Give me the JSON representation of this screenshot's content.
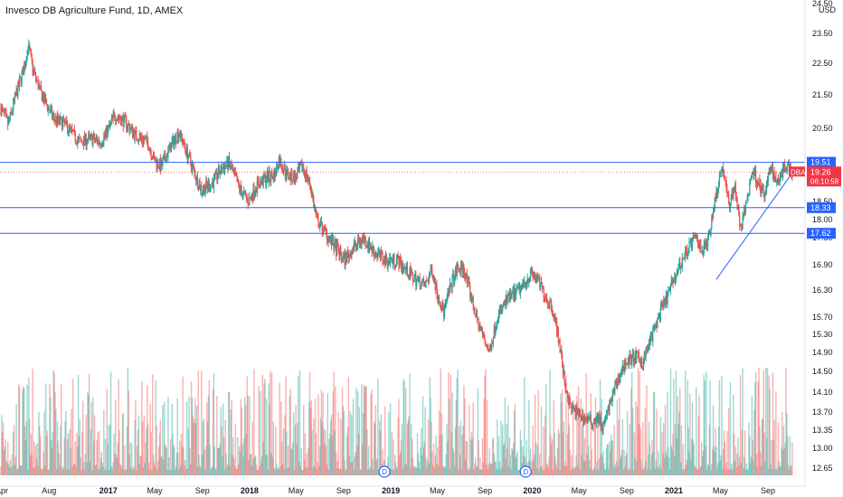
{
  "header": {
    "title": "Invesco DB Agriculture Fund, 1D, AMEX",
    "currency": "USD"
  },
  "colors": {
    "up": "#26a69a",
    "down": "#ef5350",
    "hline": "#2962ff",
    "price": "#f23645",
    "trend": "#2962ff"
  },
  "chart_data": {
    "type": "candlestick",
    "title": "Invesco DB Agriculture Fund, 1D, AMEX",
    "y_axis": {
      "ticks": [
        "24.50",
        "23.50",
        "22.50",
        "21.50",
        "20.50",
        "19.50",
        "18.50",
        "18.00",
        "17.50",
        "16.90",
        "16.30",
        "15.70",
        "15.30",
        "14.90",
        "14.50",
        "14.10",
        "13.70",
        "13.35",
        "13.00",
        "12.65"
      ],
      "scale": "log",
      "range": [
        12.5,
        24.6
      ],
      "currency": "USD"
    },
    "x_axis": {
      "ticks": [
        {
          "label": "Apr",
          "date": "2016-04-01",
          "bold": false
        },
        {
          "label": "Aug",
          "date": "2016-08-01",
          "bold": false
        },
        {
          "label": "2017",
          "date": "2017-01-01",
          "bold": true
        },
        {
          "label": "May",
          "date": "2017-05-01",
          "bold": false
        },
        {
          "label": "Sep",
          "date": "2017-09-01",
          "bold": false
        },
        {
          "label": "2018",
          "date": "2018-01-01",
          "bold": true
        },
        {
          "label": "May",
          "date": "2018-05-01",
          "bold": false
        },
        {
          "label": "Sep",
          "date": "2018-09-01",
          "bold": false
        },
        {
          "label": "2019",
          "date": "2019-01-01",
          "bold": true
        },
        {
          "label": "May",
          "date": "2019-05-01",
          "bold": false
        },
        {
          "label": "Sep",
          "date": "2019-09-01",
          "bold": false
        },
        {
          "label": "2020",
          "date": "2020-01-01",
          "bold": true
        },
        {
          "label": "May",
          "date": "2020-05-01",
          "bold": false
        },
        {
          "label": "Sep",
          "date": "2020-09-01",
          "bold": false
        },
        {
          "label": "2021",
          "date": "2021-01-01",
          "bold": true
        },
        {
          "label": "May",
          "date": "2021-05-01",
          "bold": false
        },
        {
          "label": "Sep",
          "date": "2021-09-01",
          "bold": false
        }
      ],
      "range": [
        "2016-04-01",
        "2021-12-01"
      ]
    },
    "price_path": [
      {
        "date": "2016-04-01",
        "price": 21.1
      },
      {
        "date": "2016-04-20",
        "price": 20.6
      },
      {
        "date": "2016-05-10",
        "price": 21.5
      },
      {
        "date": "2016-06-01",
        "price": 22.4
      },
      {
        "date": "2016-06-10",
        "price": 23.1
      },
      {
        "date": "2016-06-25",
        "price": 22.2
      },
      {
        "date": "2016-07-15",
        "price": 21.5
      },
      {
        "date": "2016-08-15",
        "price": 20.8
      },
      {
        "date": "2016-09-15",
        "price": 20.6
      },
      {
        "date": "2016-10-20",
        "price": 20.1
      },
      {
        "date": "2016-11-20",
        "price": 20.2
      },
      {
        "date": "2016-12-15",
        "price": 20.1
      },
      {
        "date": "2017-01-05",
        "price": 20.5
      },
      {
        "date": "2017-01-20",
        "price": 20.9
      },
      {
        "date": "2017-02-15",
        "price": 20.7
      },
      {
        "date": "2017-03-15",
        "price": 20.3
      },
      {
        "date": "2017-04-15",
        "price": 20.1
      },
      {
        "date": "2017-05-01",
        "price": 19.6
      },
      {
        "date": "2017-05-20",
        "price": 19.4
      },
      {
        "date": "2017-06-15",
        "price": 20.0
      },
      {
        "date": "2017-07-05",
        "price": 20.4
      },
      {
        "date": "2017-07-25",
        "price": 19.8
      },
      {
        "date": "2017-08-15",
        "price": 19.2
      },
      {
        "date": "2017-09-01",
        "price": 18.8
      },
      {
        "date": "2017-10-01",
        "price": 19.0
      },
      {
        "date": "2017-10-20",
        "price": 19.3
      },
      {
        "date": "2017-11-10",
        "price": 19.5
      },
      {
        "date": "2017-12-10",
        "price": 18.8
      },
      {
        "date": "2018-01-01",
        "price": 18.5
      },
      {
        "date": "2018-01-20",
        "price": 18.9
      },
      {
        "date": "2018-02-15",
        "price": 19.1
      },
      {
        "date": "2018-03-10",
        "price": 19.2
      },
      {
        "date": "2018-03-20",
        "price": 19.6
      },
      {
        "date": "2018-04-10",
        "price": 19.2
      },
      {
        "date": "2018-05-01",
        "price": 19.1
      },
      {
        "date": "2018-05-20",
        "price": 19.4
      },
      {
        "date": "2018-06-10",
        "price": 18.9
      },
      {
        "date": "2018-06-25",
        "price": 18.0
      },
      {
        "date": "2018-07-15",
        "price": 17.7
      },
      {
        "date": "2018-08-10",
        "price": 17.3
      },
      {
        "date": "2018-09-05",
        "price": 17.0
      },
      {
        "date": "2018-10-01",
        "price": 17.3
      },
      {
        "date": "2018-10-25",
        "price": 17.5
      },
      {
        "date": "2018-11-20",
        "price": 17.2
      },
      {
        "date": "2018-12-20",
        "price": 17.0
      },
      {
        "date": "2019-01-20",
        "price": 17.0
      },
      {
        "date": "2019-03-01",
        "price": 16.6
      },
      {
        "date": "2019-04-01",
        "price": 16.4
      },
      {
        "date": "2019-04-20",
        "price": 16.8
      },
      {
        "date": "2019-05-01",
        "price": 16.3
      },
      {
        "date": "2019-05-20",
        "price": 15.8
      },
      {
        "date": "2019-06-10",
        "price": 16.5
      },
      {
        "date": "2019-06-25",
        "price": 16.8
      },
      {
        "date": "2019-07-10",
        "price": 16.8
      },
      {
        "date": "2019-07-25",
        "price": 16.3
      },
      {
        "date": "2019-08-15",
        "price": 15.6
      },
      {
        "date": "2019-09-01",
        "price": 15.2
      },
      {
        "date": "2019-09-15",
        "price": 14.9
      },
      {
        "date": "2019-10-05",
        "price": 15.7
      },
      {
        "date": "2019-11-01",
        "price": 16.1
      },
      {
        "date": "2019-12-01",
        "price": 16.3
      },
      {
        "date": "2020-01-01",
        "price": 16.7
      },
      {
        "date": "2020-01-20",
        "price": 16.5
      },
      {
        "date": "2020-02-10",
        "price": 16.1
      },
      {
        "date": "2020-02-25",
        "price": 15.9
      },
      {
        "date": "2020-03-10",
        "price": 15.3
      },
      {
        "date": "2020-03-25",
        "price": 14.4
      },
      {
        "date": "2020-04-10",
        "price": 13.8
      },
      {
        "date": "2020-04-25",
        "price": 13.7
      },
      {
        "date": "2020-05-15",
        "price": 13.6
      },
      {
        "date": "2020-06-05",
        "price": 13.5
      },
      {
        "date": "2020-06-20",
        "price": 13.6
      },
      {
        "date": "2020-07-05",
        "price": 13.4
      },
      {
        "date": "2020-07-20",
        "price": 13.8
      },
      {
        "date": "2020-08-10",
        "price": 14.3
      },
      {
        "date": "2020-09-01",
        "price": 14.7
      },
      {
        "date": "2020-09-25",
        "price": 14.8
      },
      {
        "date": "2020-10-15",
        "price": 14.7
      },
      {
        "date": "2020-11-05",
        "price": 15.2
      },
      {
        "date": "2020-11-25",
        "price": 15.7
      },
      {
        "date": "2020-12-15",
        "price": 16.1
      },
      {
        "date": "2021-01-05",
        "price": 16.6
      },
      {
        "date": "2021-01-20",
        "price": 16.9
      },
      {
        "date": "2021-02-10",
        "price": 17.3
      },
      {
        "date": "2021-03-01",
        "price": 17.5
      },
      {
        "date": "2021-03-20",
        "price": 17.2
      },
      {
        "date": "2021-04-05",
        "price": 17.6
      },
      {
        "date": "2021-04-15",
        "price": 18.3
      },
      {
        "date": "2021-04-30",
        "price": 19.1
      },
      {
        "date": "2021-05-10",
        "price": 19.4
      },
      {
        "date": "2021-05-25",
        "price": 18.4
      },
      {
        "date": "2021-06-10",
        "price": 18.9
      },
      {
        "date": "2021-06-25",
        "price": 17.7
      },
      {
        "date": "2021-07-10",
        "price": 18.5
      },
      {
        "date": "2021-07-25",
        "price": 19.3
      },
      {
        "date": "2021-08-10",
        "price": 19.0
      },
      {
        "date": "2021-08-25",
        "price": 18.6
      },
      {
        "date": "2021-09-10",
        "price": 19.4
      },
      {
        "date": "2021-09-25",
        "price": 19.0
      },
      {
        "date": "2021-10-10",
        "price": 19.3
      },
      {
        "date": "2021-10-25",
        "price": 19.5
      },
      {
        "date": "2021-11-05",
        "price": 19.26
      }
    ],
    "horizontal_lines": [
      {
        "price": 19.51,
        "label": "19.51"
      },
      {
        "price": 18.33,
        "label": "18.33"
      },
      {
        "price": 17.62,
        "label": "17.62"
      }
    ],
    "trendline": {
      "from": {
        "date": "2021-04-25",
        "price": 16.55
      },
      "to": {
        "date": "2021-11-05",
        "price": 19.2
      }
    },
    "last_price": {
      "symbol": "DBA",
      "price": 19.26,
      "label": "19.26",
      "countdown": "06:10:58"
    },
    "dividend_markers": [
      {
        "date": "2018-12-20",
        "label": "D"
      },
      {
        "date": "2019-12-20",
        "label": "D"
      }
    ],
    "volume": {
      "shown": true,
      "max_height_fraction": 0.28
    }
  }
}
